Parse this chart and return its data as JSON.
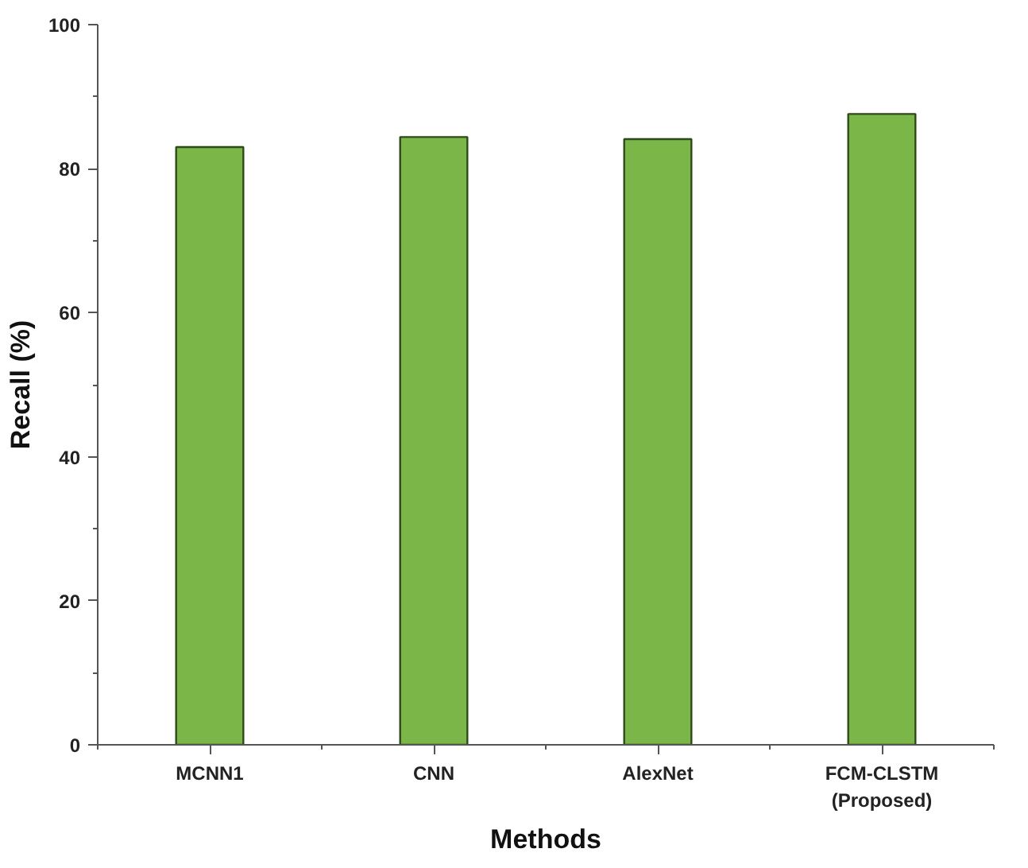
{
  "chart_data": {
    "type": "bar",
    "xlabel": "Methods",
    "ylabel": "Recall (%)",
    "categories": [
      "MCNN1",
      "CNN",
      "AlexNet",
      "FCM-CLSTM\n(Proposed)"
    ],
    "values": [
      83.0,
      84.4,
      84.1,
      87.6
    ],
    "color": "#7ab648",
    "ylim": [
      0,
      100
    ],
    "yticks": [
      0,
      20,
      40,
      60,
      80,
      100
    ],
    "grid": false
  }
}
